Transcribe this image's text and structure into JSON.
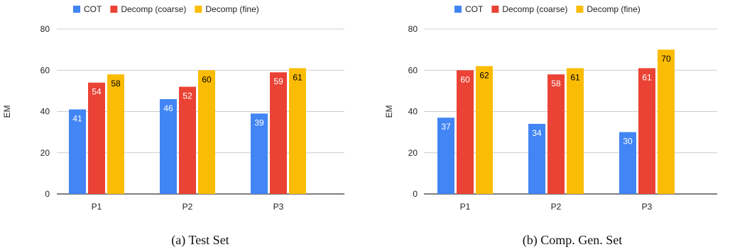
{
  "chart_data": [
    {
      "type": "bar",
      "caption": "(a) Test Set",
      "ylabel": "EM",
      "xlabel": "",
      "ylim": [
        0,
        80
      ],
      "yticks": [
        0,
        20,
        40,
        60,
        80
      ],
      "categories": [
        "P1",
        "P2",
        "P3"
      ],
      "legend_position": "top",
      "series": [
        {
          "name": "COT",
          "color": "#4285f4",
          "label_color": "#ffffff",
          "values": [
            41,
            46,
            39
          ]
        },
        {
          "name": "Decomp (coarse)",
          "color": "#ea4335",
          "label_color": "#ffffff",
          "values": [
            54,
            52,
            59
          ]
        },
        {
          "name": "Decomp (fine)",
          "color": "#fbbc04",
          "label_color": "#000000",
          "values": [
            58,
            60,
            61
          ]
        }
      ]
    },
    {
      "type": "bar",
      "caption": "(b) Comp. Gen. Set",
      "ylabel": "EM",
      "xlabel": "",
      "ylim": [
        0,
        80
      ],
      "yticks": [
        0,
        20,
        40,
        60,
        80
      ],
      "categories": [
        "P1",
        "P2",
        "P3"
      ],
      "legend_position": "top",
      "series": [
        {
          "name": "COT",
          "color": "#4285f4",
          "label_color": "#ffffff",
          "values": [
            37,
            34,
            30
          ]
        },
        {
          "name": "Decomp (coarse)",
          "color": "#ea4335",
          "label_color": "#ffffff",
          "values": [
            60,
            58,
            61
          ]
        },
        {
          "name": "Decomp (fine)",
          "color": "#fbbc04",
          "label_color": "#000000",
          "values": [
            62,
            61,
            70
          ]
        }
      ]
    }
  ]
}
